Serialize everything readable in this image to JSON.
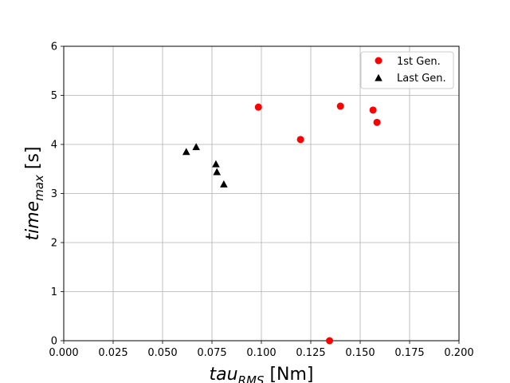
{
  "chart_data": {
    "type": "scatter",
    "xlabel": {
      "main": "tau",
      "sub": "RMS",
      "unit": " [Nm]"
    },
    "ylabel": {
      "main": "time",
      "sub": "max",
      "unit": " [s]"
    },
    "xlim": [
      0.0,
      0.2
    ],
    "ylim": [
      0,
      6
    ],
    "x_ticks": [
      0.0,
      0.025,
      0.05,
      0.075,
      0.1,
      0.125,
      0.15,
      0.175,
      0.2
    ],
    "x_tick_labels": [
      "0.000",
      "0.025",
      "0.050",
      "0.075",
      "0.100",
      "0.125",
      "0.150",
      "0.175",
      "0.200"
    ],
    "y_ticks": [
      0,
      1,
      2,
      3,
      4,
      5,
      6
    ],
    "y_tick_labels": [
      "0",
      "1",
      "2",
      "3",
      "4",
      "5",
      "6"
    ],
    "grid": true,
    "legend_position": "top-right",
    "series": [
      {
        "name": "1st Gen.",
        "marker": "circle",
        "color": "#ff0000",
        "points": [
          {
            "x": 0.0985,
            "y": 4.76
          },
          {
            "x": 0.1198,
            "y": 4.1
          },
          {
            "x": 0.14,
            "y": 4.78
          },
          {
            "x": 0.1565,
            "y": 4.7
          },
          {
            "x": 0.1585,
            "y": 4.45
          },
          {
            "x": 0.1345,
            "y": 0.0
          }
        ]
      },
      {
        "name": "Last Gen.",
        "marker": "triangle",
        "color": "#000000",
        "points": [
          {
            "x": 0.062,
            "y": 3.85
          },
          {
            "x": 0.067,
            "y": 3.95
          },
          {
            "x": 0.077,
            "y": 3.6
          },
          {
            "x": 0.0775,
            "y": 3.44
          },
          {
            "x": 0.081,
            "y": 3.19
          }
        ]
      }
    ]
  }
}
